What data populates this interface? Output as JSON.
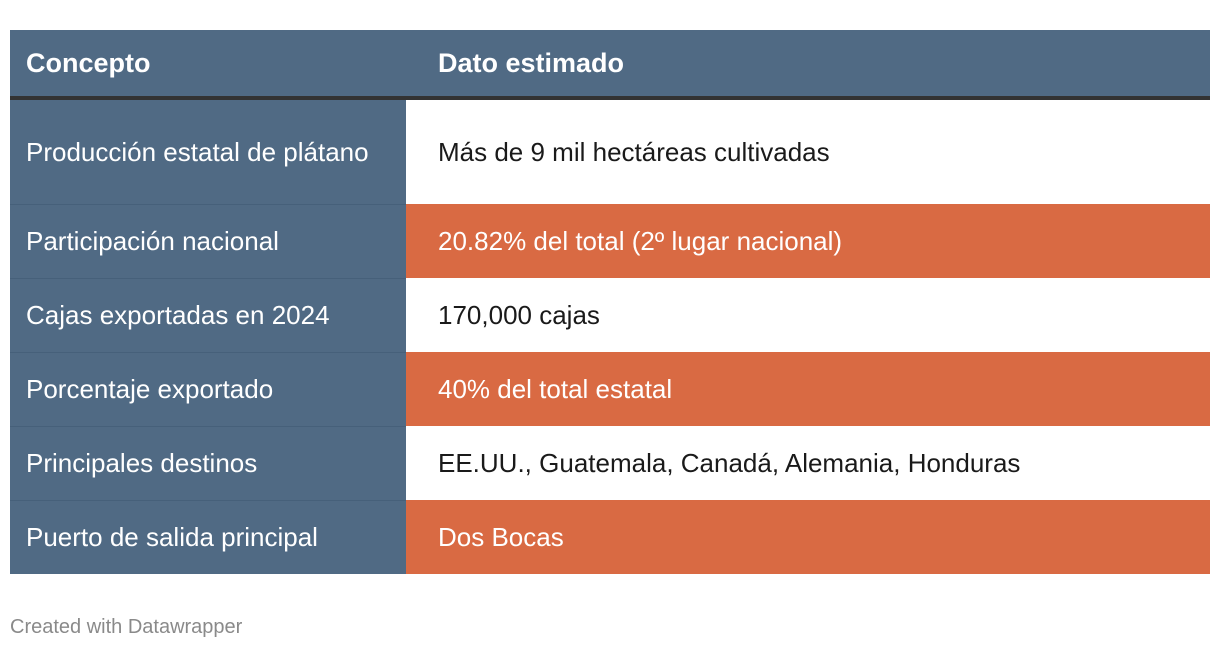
{
  "chart_data": {
    "type": "table",
    "columns": [
      "Concepto",
      "Dato estimado"
    ],
    "rows": [
      {
        "concepto": "Producción estatal de plátano",
        "dato": "Más de 9 mil hectáreas cultivadas",
        "highlight": false
      },
      {
        "concepto": "Participación nacional",
        "dato": "20.82% del total (2º lugar nacional)",
        "highlight": true
      },
      {
        "concepto": "Cajas exportadas en 2024",
        "dato": "170,000 cajas",
        "highlight": false
      },
      {
        "concepto": "Porcentaje exportado",
        "dato": "40% del total estatal",
        "highlight": true
      },
      {
        "concepto": "Principales destinos",
        "dato": "EE.UU., Guatemala, Canadá, Alemania, Honduras",
        "highlight": false
      },
      {
        "concepto": "Puerto de salida principal",
        "dato": "Dos Bocas",
        "highlight": true
      }
    ],
    "colors": {
      "header": "#506a84",
      "highlight": "#d96a43",
      "plain": "#ffffff"
    }
  },
  "footer": {
    "credit": "Created with Datawrapper"
  }
}
